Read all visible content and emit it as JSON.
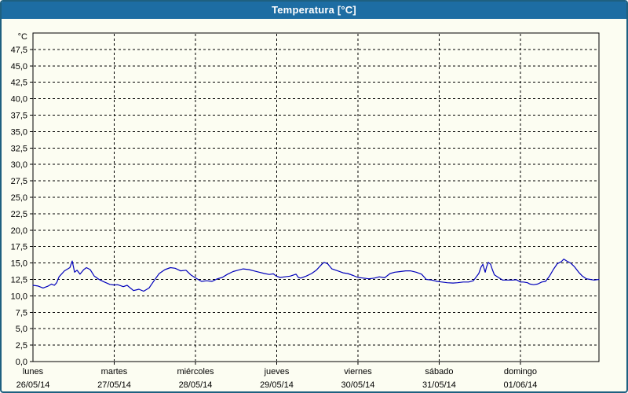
{
  "window": {
    "title": "Temperatura [°C]"
  },
  "colors": {
    "titlebar_bg": "#1d6da3",
    "titlebar_text": "#ffffff",
    "window_border": "#1e6080",
    "page_bg": "#fcfdf2",
    "plot_border": "#000000",
    "grid": "#000000",
    "axis_text": "#000000",
    "series_line": "#0000bb"
  },
  "chart_data": {
    "type": "line",
    "title": "Temperatura [°C]",
    "y_unit": "°C",
    "ylim": [
      0,
      50
    ],
    "y_tick_step": 2.5,
    "y_tick_labels": [
      "0,0",
      "2,5",
      "5,0",
      "7,5",
      "10,0",
      "12,5",
      "15,0",
      "17,5",
      "20,0",
      "22,5",
      "25,0",
      "27,5",
      "30,0",
      "32,5",
      "35,0",
      "37,5",
      "40,0",
      "42,5",
      "45,0",
      "47,5"
    ],
    "x_span_hours": 167.2,
    "grid": "dashed",
    "legend": "none",
    "x_axis_days": [
      {
        "name": "lunes",
        "date": "26/05/14",
        "hour": 0
      },
      {
        "name": "martes",
        "date": "27/05/14",
        "hour": 24
      },
      {
        "name": "miércoles",
        "date": "28/05/14",
        "hour": 48
      },
      {
        "name": "jueves",
        "date": "29/05/14",
        "hour": 72
      },
      {
        "name": "viernes",
        "date": "30/05/14",
        "hour": 96
      },
      {
        "name": "sábado",
        "date": "31/05/14",
        "hour": 120
      },
      {
        "name": "domingo",
        "date": "01/06/14",
        "hour": 144
      }
    ],
    "series": [
      {
        "name": "Temperatura",
        "color": "#0000bb",
        "points": [
          [
            0,
            11.6
          ],
          [
            1.5,
            11.5
          ],
          [
            3,
            11.2
          ],
          [
            4.5,
            11.5
          ],
          [
            5.5,
            11.8
          ],
          [
            6.3,
            11.6
          ],
          [
            7,
            12.0
          ],
          [
            7.7,
            12.9
          ],
          [
            9.3,
            13.8
          ],
          [
            10.9,
            14.3
          ],
          [
            11.6,
            15.3
          ],
          [
            12.3,
            13.6
          ],
          [
            13,
            13.9
          ],
          [
            13.9,
            13.3
          ],
          [
            15,
            14.0
          ],
          [
            15.8,
            14.3
          ],
          [
            16.9,
            14.0
          ],
          [
            18.1,
            13.0
          ],
          [
            19.5,
            12.5
          ],
          [
            21.1,
            12.1
          ],
          [
            22.7,
            11.75
          ],
          [
            24,
            11.65
          ],
          [
            25,
            11.7
          ],
          [
            26.7,
            11.4
          ],
          [
            27.8,
            11.6
          ],
          [
            29.7,
            10.8
          ],
          [
            31.3,
            11.0
          ],
          [
            32.7,
            10.7
          ],
          [
            34.3,
            11.2
          ],
          [
            35.9,
            12.4
          ],
          [
            37.3,
            13.4
          ],
          [
            39,
            14.0
          ],
          [
            40.6,
            14.3
          ],
          [
            42,
            14.2
          ],
          [
            43.6,
            13.8
          ],
          [
            45.2,
            13.9
          ],
          [
            46.6,
            13.2
          ],
          [
            47.8,
            12.8
          ],
          [
            49.8,
            12.2
          ],
          [
            51.3,
            12.3
          ],
          [
            52.9,
            12.2
          ],
          [
            54.5,
            12.6
          ],
          [
            55.9,
            12.8
          ],
          [
            57.5,
            13.3
          ],
          [
            59.1,
            13.7
          ],
          [
            60.5,
            13.9
          ],
          [
            62.1,
            14.1
          ],
          [
            63.8,
            14.0
          ],
          [
            65.2,
            13.8
          ],
          [
            66.8,
            13.6
          ],
          [
            68.4,
            13.4
          ],
          [
            69.8,
            13.25
          ],
          [
            71,
            13.35
          ],
          [
            71.9,
            13.0
          ],
          [
            73,
            12.8
          ],
          [
            74.4,
            12.9
          ],
          [
            76,
            13.0
          ],
          [
            77.7,
            13.3
          ],
          [
            78.4,
            12.8
          ],
          [
            79.1,
            12.7
          ],
          [
            80.7,
            13.0
          ],
          [
            82.3,
            13.4
          ],
          [
            83.7,
            13.9
          ],
          [
            85.3,
            14.8
          ],
          [
            86,
            15.1
          ],
          [
            87,
            14.9
          ],
          [
            88.3,
            14.1
          ],
          [
            90,
            13.8
          ],
          [
            91.6,
            13.5
          ],
          [
            93,
            13.4
          ],
          [
            94.6,
            13.1
          ],
          [
            96,
            12.8
          ],
          [
            97.6,
            12.7
          ],
          [
            99.2,
            12.6
          ],
          [
            100.9,
            12.7
          ],
          [
            102.3,
            12.9
          ],
          [
            103.9,
            12.75
          ],
          [
            105.5,
            13.4
          ],
          [
            106.9,
            13.6
          ],
          [
            108.5,
            13.7
          ],
          [
            110.1,
            13.8
          ],
          [
            111.5,
            13.8
          ],
          [
            113.2,
            13.6
          ],
          [
            114.8,
            13.3
          ],
          [
            116.2,
            12.5
          ],
          [
            117.8,
            12.4
          ],
          [
            119.4,
            12.2
          ],
          [
            120.8,
            12.1
          ],
          [
            122.4,
            12.0
          ],
          [
            124.1,
            11.95
          ],
          [
            125.4,
            12.0
          ],
          [
            127.1,
            12.1
          ],
          [
            128.7,
            12.1
          ],
          [
            130.1,
            12.3
          ],
          [
            131.7,
            13.4
          ],
          [
            132.4,
            14.4
          ],
          [
            132.9,
            14.8
          ],
          [
            133.6,
            13.6
          ],
          [
            134,
            14.4
          ],
          [
            134.5,
            15.1
          ],
          [
            135.2,
            14.8
          ],
          [
            135.7,
            14.0
          ],
          [
            136.3,
            13.2
          ],
          [
            137.5,
            12.8
          ],
          [
            138.7,
            12.4
          ],
          [
            140.3,
            12.4
          ],
          [
            141.7,
            12.4
          ],
          [
            142.8,
            12.45
          ],
          [
            144,
            12.1
          ],
          [
            144.9,
            12.1
          ],
          [
            146.1,
            12.0
          ],
          [
            146.8,
            11.8
          ],
          [
            147.9,
            11.7
          ],
          [
            149.1,
            11.8
          ],
          [
            150.3,
            12.1
          ],
          [
            151.4,
            12.2
          ],
          [
            152.6,
            13.0
          ],
          [
            153.7,
            14.0
          ],
          [
            154.9,
            14.9
          ],
          [
            156.1,
            15.2
          ],
          [
            156.8,
            15.6
          ],
          [
            157.7,
            15.3
          ],
          [
            158.8,
            15.0
          ],
          [
            160,
            14.4
          ],
          [
            161.2,
            13.6
          ],
          [
            162.3,
            13.0
          ],
          [
            163.5,
            12.6
          ],
          [
            164.6,
            12.5
          ],
          [
            165.8,
            12.4
          ],
          [
            167.2,
            12.5
          ]
        ]
      }
    ]
  }
}
